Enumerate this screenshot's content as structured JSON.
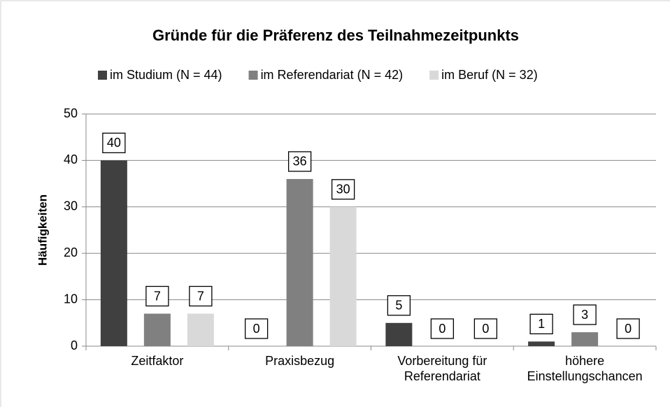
{
  "chart_data": {
    "type": "bar",
    "title": "Gründe für die Präferenz des Teilnahmezeitpunkts",
    "y_label": "Häufigkeiten",
    "categories": [
      "Zeitfaktor",
      "Praxisbezug",
      "Vorbereitung für\nReferendariat",
      "höhere\nEinstellungschancen"
    ],
    "series": [
      {
        "name": "im Studium (N = 44)",
        "color": "#404040",
        "values": [
          40,
          0,
          5,
          1
        ]
      },
      {
        "name": "im Referendariat (N = 42)",
        "color": "#808080",
        "values": [
          7,
          36,
          0,
          3
        ]
      },
      {
        "name": "im Beruf (N = 32)",
        "color": "#d9d9d9",
        "values": [
          7,
          30,
          0,
          0
        ]
      }
    ],
    "ylim": [
      0,
      50
    ],
    "yticks": [
      0,
      10,
      20,
      30,
      40,
      50
    ],
    "grid": true,
    "legend": "top"
  }
}
